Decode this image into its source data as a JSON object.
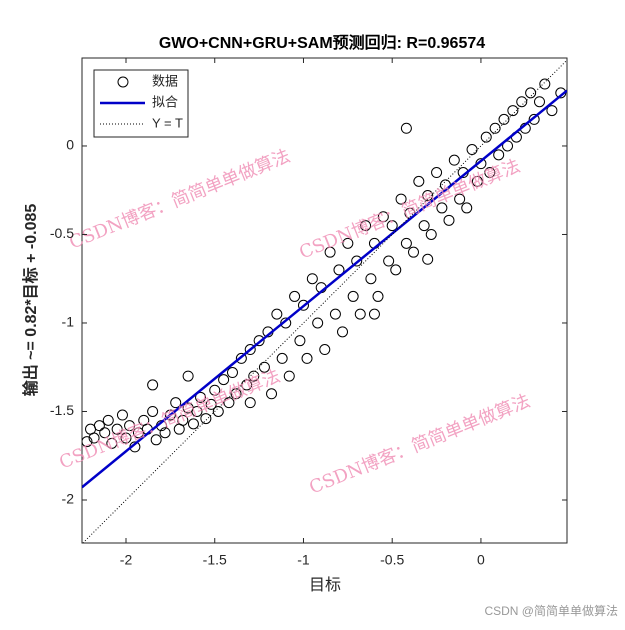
{
  "chart_data": {
    "type": "scatter",
    "title": "GWO+CNN+GRU+SAM预测回归: R=0.96574",
    "x_label": "目标",
    "y_label": "输出 ~= 0.82*目标 + -0.085",
    "xlim": [
      -2.248,
      0.485
    ],
    "ylim": [
      -2.243,
      0.497
    ],
    "xticks": [
      -2,
      -1.5,
      -1,
      -0.5,
      0
    ],
    "yticks": [
      -2,
      -1.5,
      -1,
      -0.5,
      0
    ],
    "legend": "upper-left",
    "watermark": "CSDN博客：简简单单做算法",
    "footer": "CSDN @简简单单做算法",
    "series": [
      {
        "name": "数据",
        "kind": "markers",
        "color": "#000000",
        "x": [
          -2.2,
          -2.18,
          -2.15,
          -2.12,
          -2.1,
          -2.08,
          -2.05,
          -2.02,
          -2.0,
          -1.98,
          -1.95,
          -1.93,
          -1.9,
          -1.88,
          -1.85,
          -1.83,
          -1.8,
          -1.78,
          -1.75,
          -1.72,
          -1.7,
          -1.68,
          -1.65,
          -1.62,
          -1.6,
          -1.58,
          -1.55,
          -1.52,
          -1.5,
          -1.48,
          -1.45,
          -1.42,
          -1.4,
          -1.38,
          -1.35,
          -1.32,
          -1.3,
          -1.28,
          -1.25,
          -1.22,
          -1.2,
          -1.18,
          -1.15,
          -1.12,
          -1.1,
          -1.08,
          -1.05,
          -1.02,
          -1.0,
          -0.98,
          -0.95,
          -0.92,
          -0.9,
          -0.88,
          -0.85,
          -0.82,
          -0.8,
          -0.78,
          -0.75,
          -0.72,
          -0.7,
          -0.68,
          -0.65,
          -0.62,
          -0.6,
          -0.58,
          -0.55,
          -0.52,
          -0.5,
          -0.48,
          -0.45,
          -0.42,
          -0.4,
          -0.38,
          -0.35,
          -0.32,
          -0.3,
          -0.28,
          -0.25,
          -0.22,
          -0.2,
          -0.18,
          -0.15,
          -0.12,
          -0.1,
          -0.08,
          -0.05,
          -0.02,
          0.0,
          0.03,
          0.05,
          0.08,
          0.1,
          0.13,
          0.15,
          0.18,
          0.2,
          0.23,
          0.25,
          0.28,
          0.3,
          0.33,
          0.36,
          0.4,
          0.45,
          -2.22,
          -1.85,
          -0.3,
          -1.3,
          -0.6,
          -1.65,
          -0.42
        ],
        "values": [
          -1.6,
          -1.65,
          -1.58,
          -1.62,
          -1.55,
          -1.68,
          -1.6,
          -1.52,
          -1.65,
          -1.58,
          -1.7,
          -1.62,
          -1.55,
          -1.6,
          -1.5,
          -1.66,
          -1.58,
          -1.62,
          -1.52,
          -1.45,
          -1.6,
          -1.55,
          -1.48,
          -1.57,
          -1.5,
          -1.42,
          -1.54,
          -1.46,
          -1.38,
          -1.5,
          -1.32,
          -1.45,
          -1.28,
          -1.4,
          -1.2,
          -1.35,
          -1.15,
          -1.3,
          -1.1,
          -1.25,
          -1.05,
          -1.4,
          -0.95,
          -1.2,
          -1.0,
          -1.3,
          -0.85,
          -1.1,
          -0.9,
          -1.2,
          -0.75,
          -1.0,
          -0.8,
          -1.15,
          -0.6,
          -0.95,
          -0.7,
          -1.05,
          -0.55,
          -0.85,
          -0.65,
          -0.95,
          -0.45,
          -0.75,
          -0.55,
          -0.85,
          -0.4,
          -0.65,
          -0.45,
          -0.7,
          -0.3,
          -0.55,
          -0.38,
          -0.6,
          -0.2,
          -0.45,
          -0.28,
          -0.5,
          -0.15,
          -0.35,
          -0.22,
          -0.42,
          -0.08,
          -0.3,
          -0.15,
          -0.35,
          -0.02,
          -0.2,
          -0.1,
          0.05,
          -0.15,
          0.1,
          -0.05,
          0.15,
          0.0,
          0.2,
          0.05,
          0.25,
          0.1,
          0.3,
          0.15,
          0.25,
          0.35,
          0.2,
          0.3,
          -1.67,
          -1.35,
          -0.64,
          -1.45,
          -0.95,
          -1.3,
          0.1
        ]
      },
      {
        "name": "拟合",
        "kind": "line",
        "color": "#0000c8",
        "x": [
          -2.248,
          0.485
        ],
        "values": [
          -1.928,
          0.313
        ]
      },
      {
        "name": "Y = T",
        "kind": "dotted",
        "color": "#000000",
        "x": [
          -2.243,
          0.485
        ],
        "values": [
          -2.243,
          0.485
        ]
      }
    ]
  }
}
